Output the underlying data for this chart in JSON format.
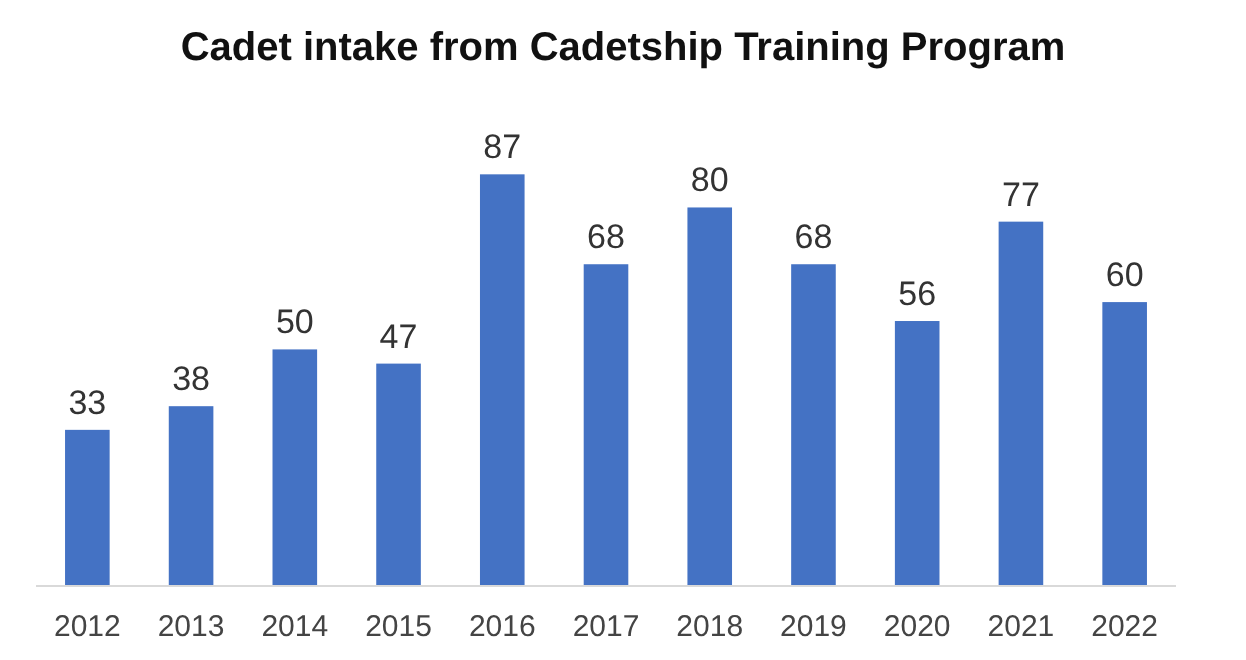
{
  "chart_data": {
    "type": "bar",
    "title": "Cadet intake from Cadetship Training Program",
    "categories": [
      "2012",
      "2013",
      "2014",
      "2015",
      "2016",
      "2017",
      "2018",
      "2019",
      "2020",
      "2021",
      "2022"
    ],
    "values": [
      33,
      38,
      50,
      47,
      87,
      68,
      80,
      68,
      56,
      77,
      60
    ],
    "color": "#4472c4",
    "data_labels": true
  }
}
